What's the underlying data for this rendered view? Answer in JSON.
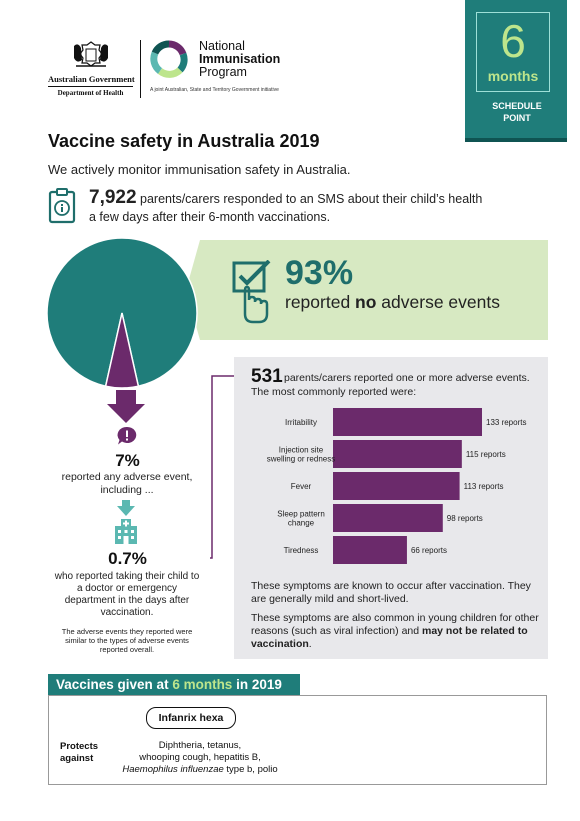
{
  "header": {
    "gov_line1": "Australian Government",
    "gov_line2": "Department of Health",
    "program_line1": "National",
    "program_line2": "Immunisation",
    "program_line3": "Program",
    "program_sub": "A joint Australian, State and Territory Government initiative",
    "corner_number": "6",
    "corner_unit": "months",
    "corner_label_1": "SCHEDULE",
    "corner_label_2": "POINT"
  },
  "title": "Vaccine safety in Australia 2019",
  "intro": "We actively monitor immunisation safety in Australia.",
  "responses": {
    "count": "7,922",
    "text_line1": " parents/carers responded to an SMS about their child’s health",
    "text_line2": "a few days after their 6-month vaccinations."
  },
  "no_adverse": {
    "percent": "93%",
    "text_pre": "reported ",
    "text_bold": "no",
    "text_post": " adverse events",
    "fraction": 0.93
  },
  "adverse": {
    "percent": "7%",
    "text": "reported any adverse event, including ...",
    "doctor_percent": "0.7%",
    "doctor_text": "who reported taking their child to a doctor or emergency department in the days after vaccination.",
    "similar_text": "The adverse events they reported were similar to the types of adverse events reported overall."
  },
  "reports": {
    "count": "531",
    "header": "parents/carers reported one or more adverse events.",
    "subheader": "The most commonly reported were:",
    "note1": "These symptoms are known to occur after vaccination. They are generally mild and short-lived.",
    "note2_pre": "These symptoms are also common in young children for other reasons (such as viral infection) and ",
    "note2_bold": "may not be related to vaccination",
    "note2_post": "."
  },
  "chart_data": {
    "type": "bar",
    "orientation": "horizontal",
    "categories": [
      [
        "Irritability"
      ],
      [
        "Injection site",
        "swelling or redness"
      ],
      [
        "Fever"
      ],
      [
        "Sleep pattern",
        "change"
      ],
      [
        "Tiredness"
      ]
    ],
    "values": [
      133,
      115,
      113,
      98,
      66
    ],
    "value_labels": [
      "133 reports",
      "115 reports",
      "113 reports",
      "98 reports",
      "66 reports"
    ],
    "bar_color": "#6b2a6b",
    "xlim": [
      0,
      133
    ]
  },
  "vaccines": {
    "title_pre": "Vaccines given at ",
    "title_hl": "6 months",
    "title_post": " in 2019",
    "vaccine_name": "Infanrix hexa",
    "protects_1": "Protects",
    "protects_2": "against",
    "diseases_1": "Diphtheria, tetanus,",
    "diseases_2": "whooping cough, hepatitis B,",
    "diseases_3_italic": "Haemophilus influenzae",
    "diseases_3_rest": " type b, polio"
  },
  "colors": {
    "teal": "#1f7d7a",
    "dark_teal": "#0f5452",
    "light_green": "#d7e9c2",
    "accent_green": "#bde58c",
    "purple": "#6b2a6b",
    "grey_panel": "#e8e8eb"
  },
  "icons": {
    "crest": "coat-of-arms-icon",
    "program_logo": "ring-logo-icon",
    "clipboard": "clipboard-info-icon",
    "checkbox_hand": "checkbox-hand-icon",
    "arrow": "down-arrow-icon",
    "speech": "exclamation-speech-icon",
    "hospital": "hospital-icon"
  }
}
